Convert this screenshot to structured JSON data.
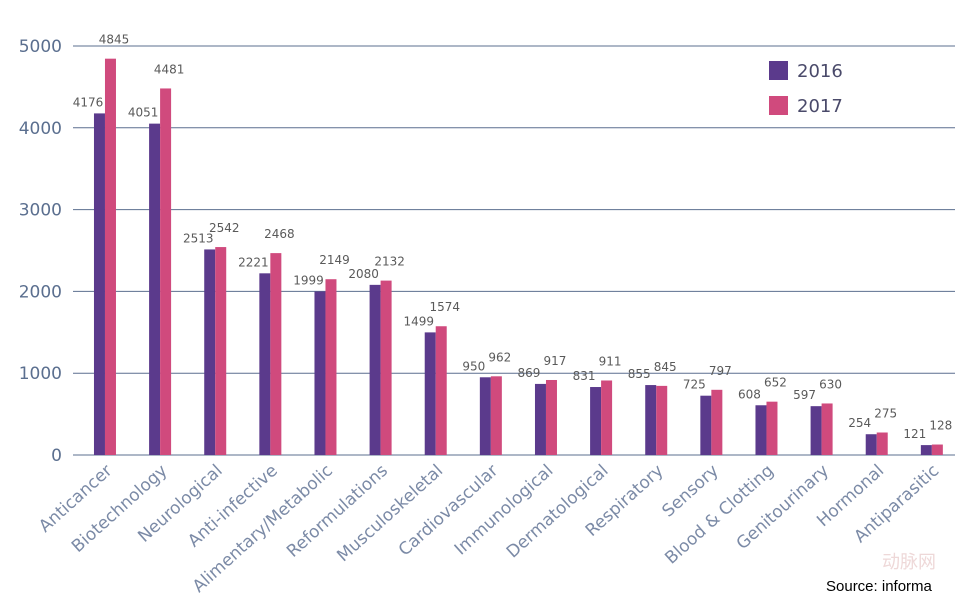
{
  "chart_data": {
    "type": "bar",
    "categories": [
      "Anticancer",
      "Biotechnology",
      "Neurological",
      "Anti-infective",
      "Alimentary/Metabolic",
      "Reformulations",
      "Musculoskeletal",
      "Cardiovascular",
      "Immunological",
      "Dermatological",
      "Respiratory",
      "Sensory",
      "Blood & Clotting",
      "Genitourinary",
      "Hormonal",
      "Antiparasitic"
    ],
    "series": [
      {
        "name": "2016",
        "color": "#5b3a8c",
        "values": [
          4176,
          4051,
          2513,
          2221,
          1999,
          2080,
          1499,
          950,
          869,
          831,
          855,
          725,
          608,
          597,
          254,
          121
        ]
      },
      {
        "name": "2017",
        "color": "#d04a7d",
        "values": [
          4845,
          4481,
          2542,
          2468,
          2149,
          2132,
          1574,
          962,
          917,
          911,
          845,
          797,
          652,
          630,
          275,
          128
        ]
      }
    ],
    "yticks": [
      0,
      1000,
      2000,
      3000,
      4000,
      5000
    ],
    "ylim": [
      0,
      5000
    ],
    "grid": true,
    "legend": "top-right"
  },
  "source": "Source:  informa",
  "watermark": "动脉网"
}
